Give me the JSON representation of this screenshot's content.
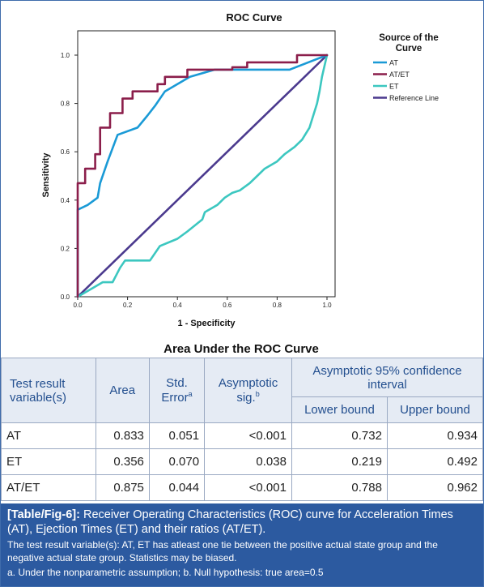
{
  "chart_data": {
    "type": "line",
    "title": "ROC Curve",
    "xlabel": "1 - Specificity",
    "ylabel": "Sensitivity",
    "xlim": [
      0,
      1
    ],
    "ylim": [
      0,
      1
    ],
    "xticks": [
      "0.0",
      "0.2",
      "0.4",
      "0.6",
      "0.8",
      "1.0"
    ],
    "yticks": [
      "0.0",
      "0.2",
      "0.4",
      "0.6",
      "0.8",
      "1.0"
    ],
    "grid": false,
    "legend_title": "Source of the Curve",
    "legend_position": "top-right",
    "series": [
      {
        "name": "AT",
        "color": "#1a9ad6",
        "step": false,
        "x": [
          0,
          0,
          0.04,
          0.08,
          0.09,
          0.12,
          0.16,
          0.24,
          0.28,
          0.31,
          0.35,
          0.4,
          0.45,
          0.55,
          0.62,
          0.85,
          1.0
        ],
        "y": [
          0,
          0.36,
          0.38,
          0.41,
          0.47,
          0.56,
          0.67,
          0.7,
          0.75,
          0.79,
          0.85,
          0.88,
          0.91,
          0.94,
          0.94,
          0.94,
          1.0
        ]
      },
      {
        "name": "AT/ET",
        "color": "#8b1e4b",
        "step": true,
        "x": [
          0,
          0,
          0.03,
          0.03,
          0.07,
          0.07,
          0.09,
          0.09,
          0.13,
          0.13,
          0.18,
          0.18,
          0.22,
          0.22,
          0.32,
          0.32,
          0.35,
          0.35,
          0.44,
          0.44,
          0.62,
          0.62,
          0.68,
          0.68,
          0.88,
          0.88,
          0.94,
          0.94,
          1.0
        ],
        "y": [
          0,
          0.47,
          0.47,
          0.53,
          0.53,
          0.59,
          0.59,
          0.7,
          0.7,
          0.76,
          0.76,
          0.82,
          0.82,
          0.85,
          0.85,
          0.88,
          0.88,
          0.91,
          0.91,
          0.94,
          0.94,
          0.95,
          0.95,
          0.97,
          0.97,
          1.0,
          1.0,
          1.0,
          1.0
        ]
      },
      {
        "name": "ET",
        "color": "#3cc7c0",
        "step": false,
        "x": [
          0,
          0.05,
          0.1,
          0.14,
          0.17,
          0.19,
          0.29,
          0.33,
          0.4,
          0.44,
          0.5,
          0.51,
          0.56,
          0.59,
          0.62,
          0.65,
          0.69,
          0.72,
          0.75,
          0.8,
          0.83,
          0.87,
          0.9,
          0.93,
          0.96,
          0.97,
          0.98,
          1.0
        ],
        "y": [
          0,
          0.03,
          0.06,
          0.06,
          0.12,
          0.15,
          0.15,
          0.21,
          0.24,
          0.27,
          0.32,
          0.35,
          0.38,
          0.41,
          0.43,
          0.44,
          0.47,
          0.5,
          0.53,
          0.56,
          0.59,
          0.62,
          0.65,
          0.7,
          0.8,
          0.85,
          0.91,
          1.0
        ]
      },
      {
        "name": "Reference Line",
        "color": "#4b3a8e",
        "step": false,
        "x": [
          0,
          1
        ],
        "y": [
          0,
          1
        ]
      }
    ],
    "table": {
      "title": "Area Under the ROC Curve",
      "columns": [
        "Test result variable(s)",
        "Area",
        "Std. Error",
        "Asymptotic sig.",
        "Lower bound",
        "Upper bound"
      ],
      "rows": [
        [
          "AT",
          "0.833",
          "0.051",
          "<0.001",
          "0.732",
          "0.934"
        ],
        [
          "ET",
          "0.356",
          "0.070",
          "0.038",
          "0.219",
          "0.492"
        ],
        [
          "AT/ET",
          "0.875",
          "0.044",
          "<0.001",
          "0.788",
          "0.962"
        ]
      ]
    }
  },
  "table": {
    "title": "Area Under the ROC Curve",
    "header": {
      "variable": "Test result variable(s)",
      "area": "Area",
      "std_error": "Std. Error",
      "std_error_sup": "a",
      "sig": "Asymptotic sig.",
      "sig_sup": "b",
      "ci": "Asymptotic 95% confidence interval",
      "lower": "Lower bound",
      "upper": "Upper bound"
    },
    "rows": [
      {
        "variable": "AT",
        "area": "0.833",
        "std_error": "0.051",
        "sig": "<0.001",
        "lower": "0.732",
        "upper": "0.934"
      },
      {
        "variable": "ET",
        "area": "0.356",
        "std_error": "0.070",
        "sig": "0.038",
        "lower": "0.219",
        "upper": "0.492"
      },
      {
        "variable": "AT/ET",
        "area": "0.875",
        "std_error": "0.044",
        "sig": "<0.001",
        "lower": "0.788",
        "upper": "0.962"
      }
    ]
  },
  "caption": {
    "ref": "[Table/Fig-6]:",
    "text": " Receiver Operating Characteristics (ROC) curve for Acceleration Times (AT), Ejection Times (ET) and their ratios (AT/ET).",
    "note1": "The test result variable(s): AT, ET has atleast one tie between the positive actual state group and the negative actual state group. Statistics may be biased.",
    "note2": "a. Under the nonparametric assumption; b. Null hypothesis: true area=0.5"
  },
  "colors": {
    "caption_bg": "#2c5aa0",
    "header_bg": "#e5ebf4",
    "header_text": "#234f8f",
    "border": "#3f6cab"
  }
}
